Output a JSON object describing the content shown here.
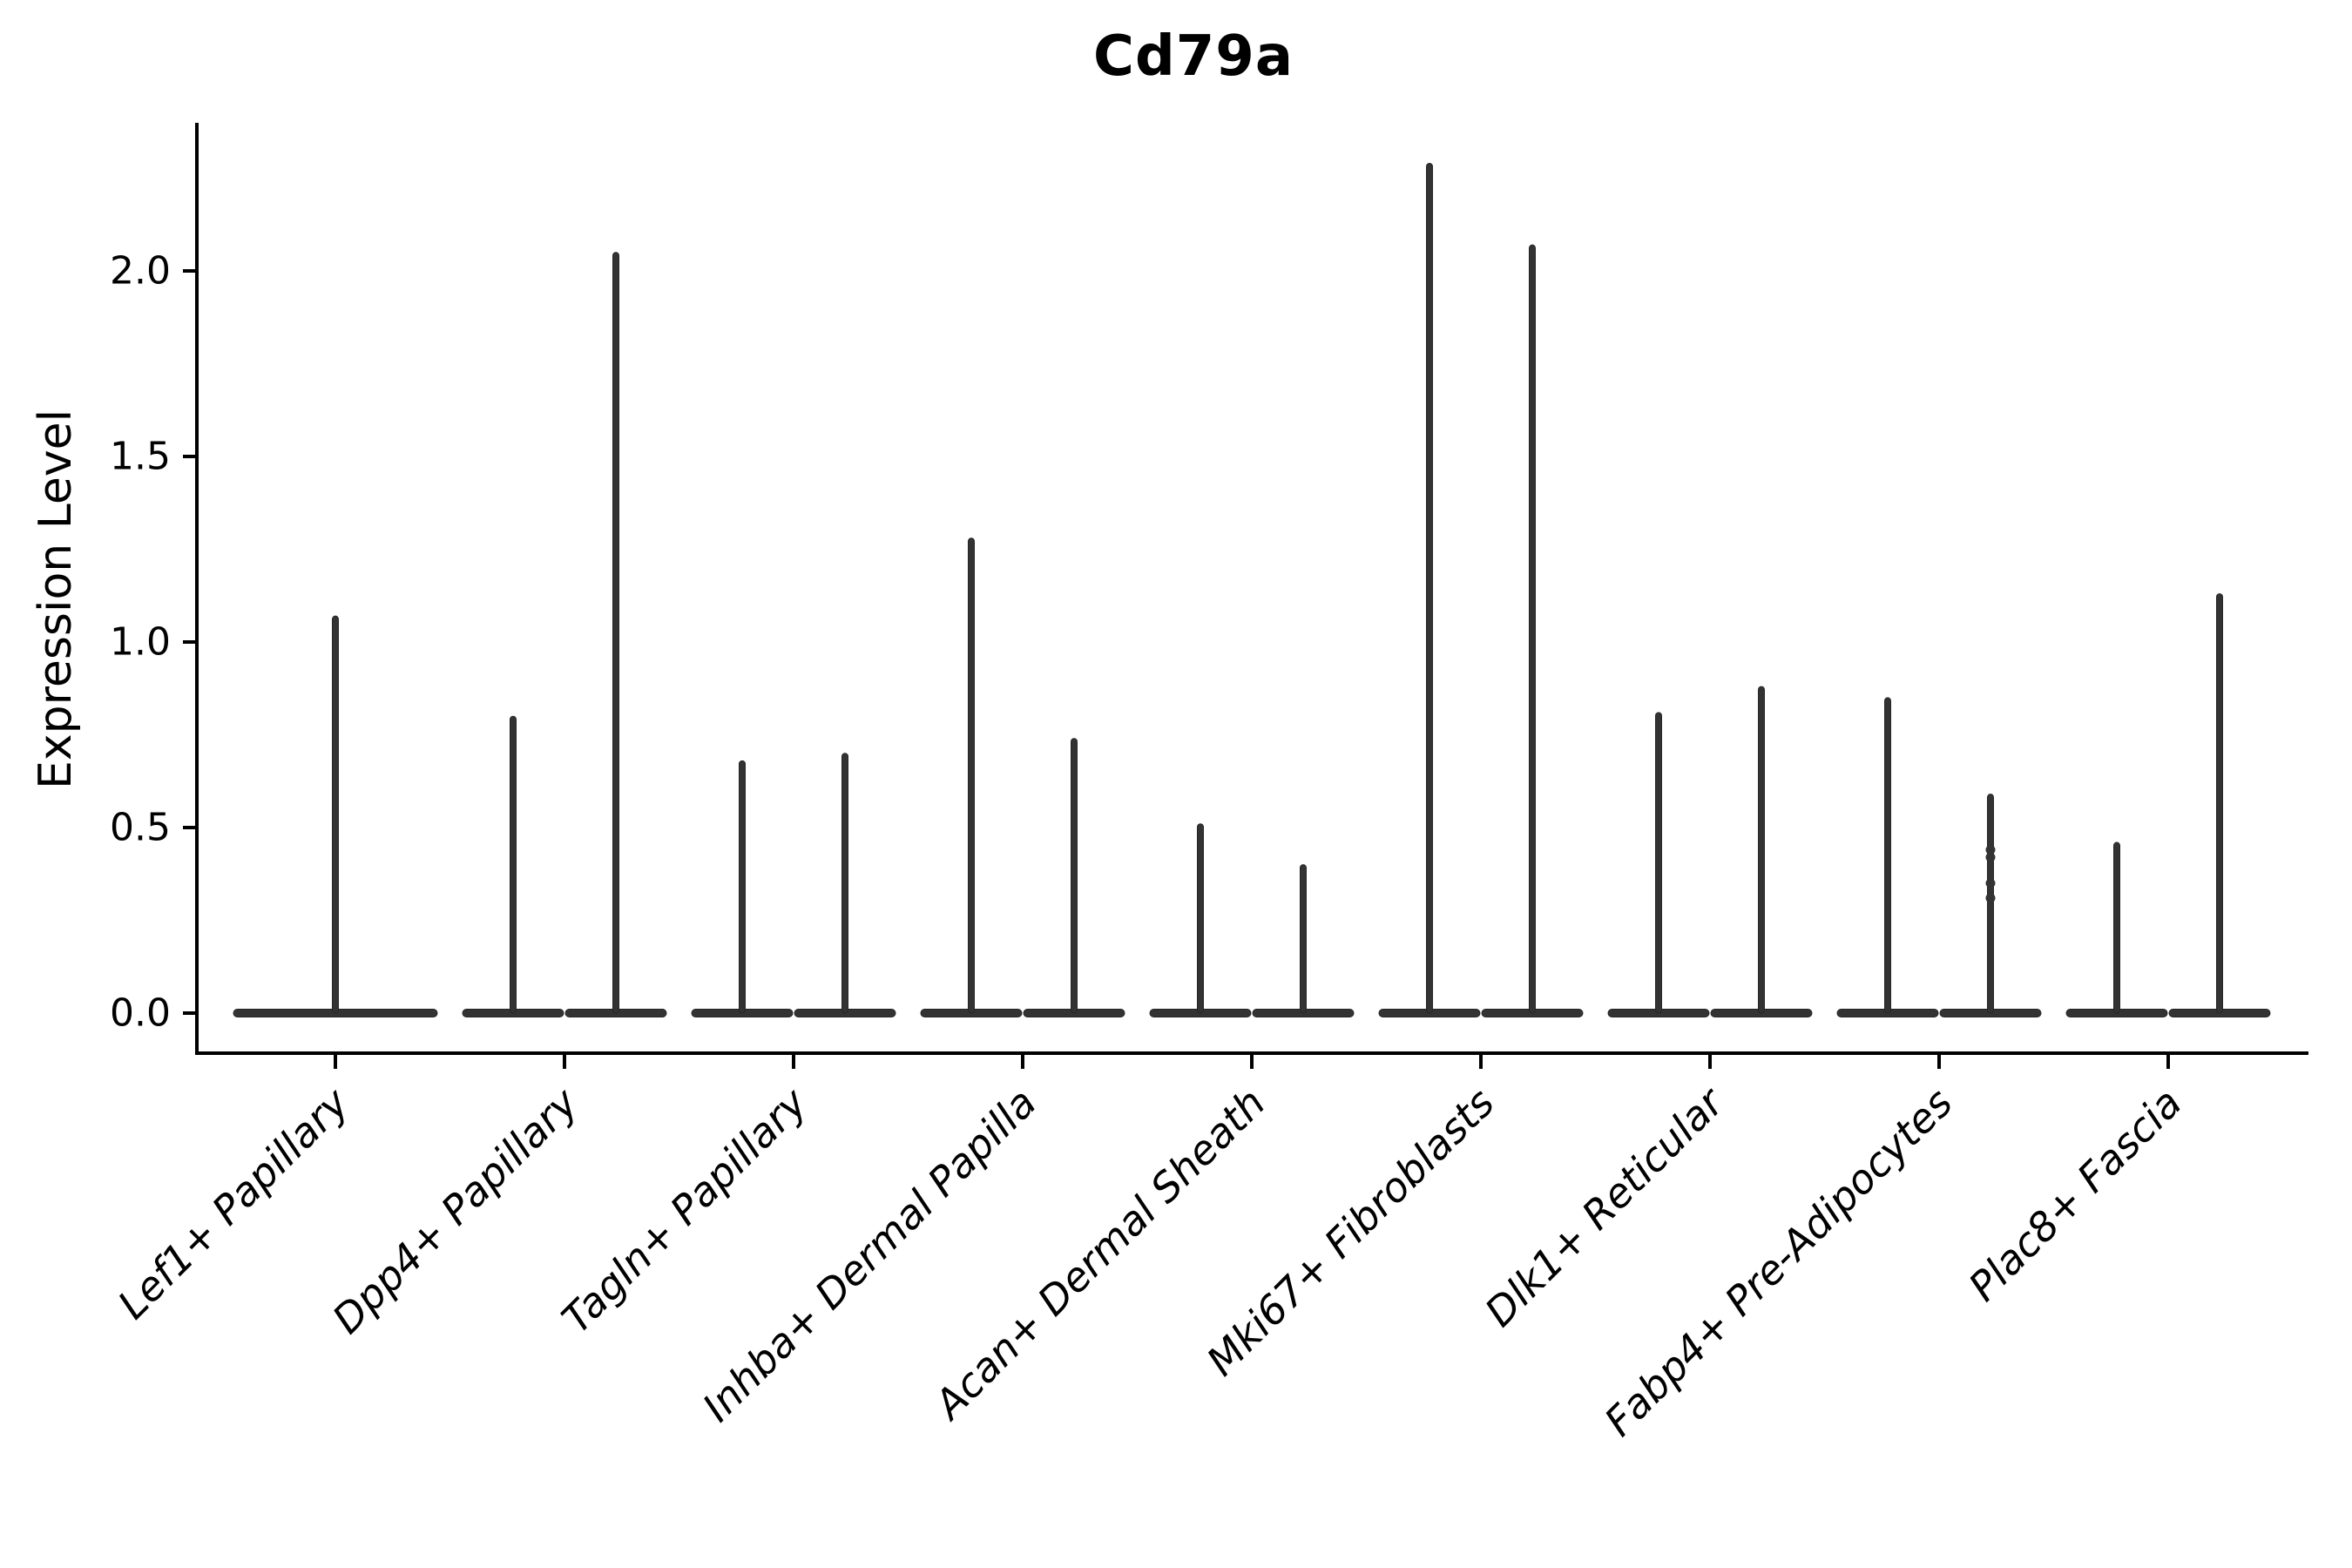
{
  "figure": {
    "title": "Cd79a",
    "y_axis_label": "Expression Level"
  },
  "chart_data": {
    "type": "violin",
    "title": "Cd79a",
    "xlabel": "",
    "ylabel": "Expression Level",
    "ylim": [
      -0.11,
      2.4
    ],
    "grid": false,
    "legend": "none",
    "yticks": [
      0.0,
      0.5,
      1.0,
      1.5,
      2.0
    ],
    "ytick_labels": [
      "0.0",
      "0.5",
      "1.0",
      "1.5",
      "2.0"
    ],
    "categories": [
      "Lef1+ Papillary",
      "Dpp4+ Papillary",
      "Tagln+ Papillary",
      "Inhba+ Dermal Papilla",
      "Acan+ Dermal Sheath",
      "Mki67+ Fibroblasts",
      "Dlk1+ Reticular",
      "Fabp4+ Pre-Adipocytes",
      "Plac8+ Fascia"
    ],
    "violins": [
      {
        "category": "Lef1+ Papillary",
        "split": false,
        "maxima": [
          1.07
        ]
      },
      {
        "category": "Dpp4+ Papillary",
        "split": true,
        "maxima": [
          0.8,
          2.05
        ]
      },
      {
        "category": "Tagln+ Papillary",
        "split": true,
        "maxima": [
          0.68,
          0.7
        ]
      },
      {
        "category": "Inhba+ Dermal Papilla",
        "split": true,
        "maxima": [
          1.28,
          0.74
        ]
      },
      {
        "category": "Acan+ Dermal Sheath",
        "split": true,
        "maxima": [
          0.51,
          0.4
        ]
      },
      {
        "category": "Mki67+ Fibroblasts",
        "split": true,
        "maxima": [
          2.29,
          2.07
        ]
      },
      {
        "category": "Dlk1+ Reticular",
        "split": true,
        "maxima": [
          0.81,
          0.88
        ]
      },
      {
        "category": "Fabp4+ Pre-Adipocytes",
        "split": true,
        "maxima": [
          0.85,
          0.59
        ],
        "point_nubs_on_violin_2": [
          0.44,
          0.42,
          0.35,
          0.31
        ]
      },
      {
        "category": "Plac8+ Fascia",
        "split": true,
        "maxima": [
          0.46,
          1.13
        ]
      }
    ],
    "violin_fill_color": "#333333",
    "violin_edge_color": "#262626",
    "axis_color": "#000000",
    "description": "Violin plot of Cd79a expression level per fibroblast cluster; expression is near zero for most cells (flat violins at 0) with thin spikes up to each violin's maximum."
  }
}
